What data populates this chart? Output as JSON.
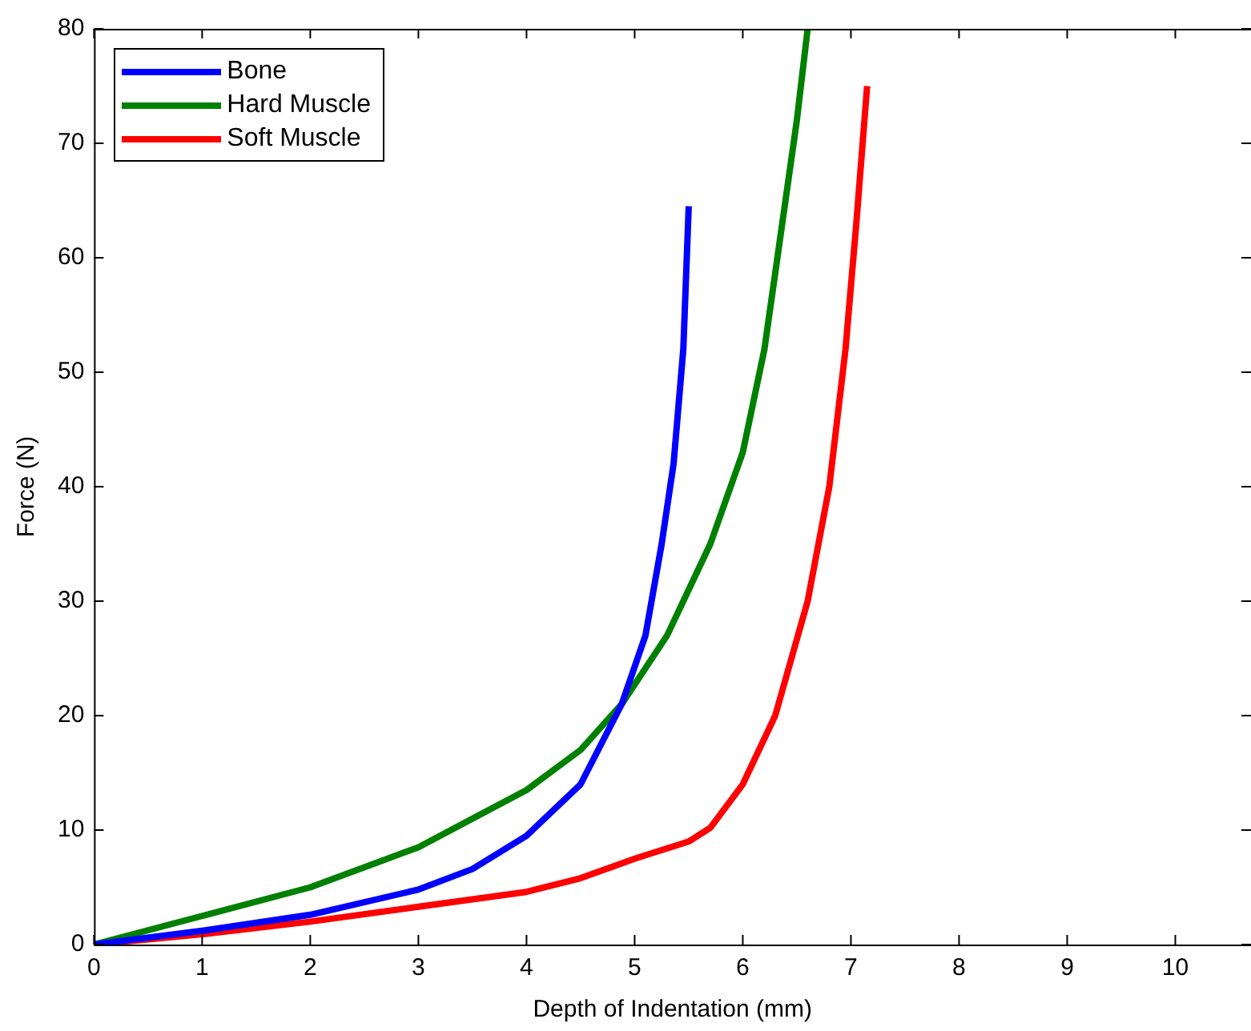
{
  "chart_data": {
    "type": "line",
    "xlabel": "Depth of Indentation (mm)",
    "ylabel": "Force (N)",
    "xlim": [
      0,
      10.7
    ],
    "xticks": [
      0,
      1,
      2,
      3,
      4,
      5,
      6,
      7,
      8,
      9,
      10
    ],
    "ylim": [
      0,
      80
    ],
    "yticks": [
      0,
      10,
      20,
      30,
      40,
      50,
      60,
      70,
      80
    ],
    "grid": false,
    "legend": "top left",
    "marker": "none",
    "line_style": "solid",
    "series": [
      {
        "name": "Bone",
        "color": "#0000ff",
        "x": [
          0,
          1,
          2,
          3,
          3.5,
          4,
          4.5,
          4.88,
          5.1,
          5.25,
          5.36,
          5.45,
          5.5
        ],
        "values": [
          0,
          1.2,
          2.6,
          4.8,
          6.6,
          9.5,
          14,
          21,
          27,
          35,
          42,
          52,
          64.5
        ]
      },
      {
        "name": "Hard Muscle",
        "color": "#008000",
        "x": [
          0,
          1,
          2,
          3,
          4,
          4.5,
          4.88,
          5.3,
          5.7,
          6,
          6.2,
          6.35,
          6.5,
          6.6
        ],
        "values": [
          0,
          2.5,
          5,
          8.5,
          13.5,
          17,
          21,
          27,
          35,
          43,
          52,
          62,
          72,
          80
        ]
      },
      {
        "name": "Soft Muscle",
        "color": "#ff0000",
        "x": [
          0,
          1,
          2,
          3,
          4,
          4.5,
          5,
          5.5,
          5.7,
          6,
          6.3,
          6.6,
          6.8,
          6.95,
          7.05,
          7.15
        ],
        "values": [
          0,
          0.9,
          2,
          3.3,
          4.6,
          5.8,
          7.5,
          9,
          10.2,
          14,
          20,
          30,
          40,
          52,
          63,
          75
        ]
      }
    ]
  }
}
